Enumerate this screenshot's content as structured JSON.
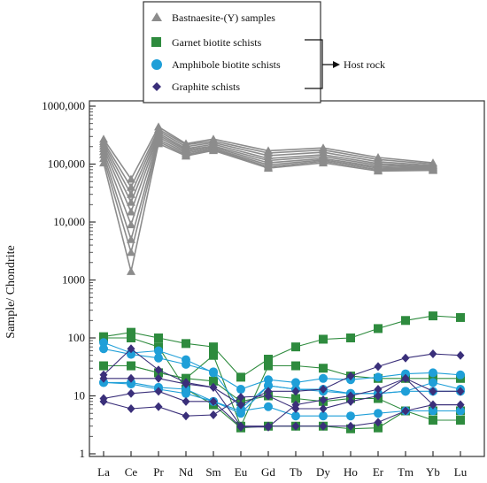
{
  "chart_data": {
    "type": "line",
    "yscale": "log",
    "ylim": [
      1,
      1000000
    ],
    "ylabel": "Sample/ Chondrite",
    "xlabel": "",
    "categories": [
      "La",
      "Ce",
      "Pr",
      "Nd",
      "Sm",
      "Eu",
      "Gd",
      "Tb",
      "Dy",
      "Ho",
      "Er",
      "Tm",
      "Yb",
      "Lu"
    ],
    "y_ticks": [
      1,
      10,
      100,
      1000,
      10000,
      100000,
      1000000
    ],
    "y_tick_labels": [
      "1",
      "10",
      "100",
      "1000",
      "10,000",
      "100,000",
      "1000,000"
    ],
    "legend": {
      "entries": [
        {
          "label": "Bastnaesite-(Y)  samples",
          "marker": "triangle",
          "color": "#8c8c8c"
        },
        {
          "label": "Garnet biotite schists",
          "marker": "square",
          "color": "#2e8b3e"
        },
        {
          "label": "Amphibole biotite schists",
          "marker": "circle",
          "color": "#1f9fd8"
        },
        {
          "label": "Graphite schists",
          "marker": "diamond",
          "color": "#3a2f7a"
        }
      ],
      "bracket_label": "Host rock"
    },
    "series": [
      {
        "group": "bastnaesite",
        "values": [
          270000,
          55000,
          440000,
          225000,
          270000,
          null,
          170000,
          null,
          190000,
          null,
          130000,
          null,
          105000,
          null
        ]
      },
      {
        "group": "bastnaesite",
        "values": [
          245000,
          40000,
          400000,
          215000,
          250000,
          null,
          155000,
          null,
          175000,
          null,
          120000,
          null,
          100000,
          null
        ]
      },
      {
        "group": "bastnaesite",
        "values": [
          225000,
          30000,
          370000,
          200000,
          235000,
          null,
          140000,
          null,
          160000,
          null,
          110000,
          null,
          95000,
          null
        ]
      },
      {
        "group": "bastnaesite",
        "values": [
          205000,
          22000,
          340000,
          185000,
          220000,
          null,
          125000,
          null,
          145000,
          null,
          102000,
          null,
          91000,
          null
        ]
      },
      {
        "group": "bastnaesite",
        "values": [
          185000,
          15000,
          315000,
          175000,
          205000,
          null,
          115000,
          null,
          135000,
          null,
          96000,
          null,
          88000,
          null
        ]
      },
      {
        "group": "bastnaesite",
        "values": [
          165000,
          9000,
          290000,
          165000,
          195000,
          null,
          105000,
          null,
          125000,
          null,
          90000,
          null,
          85000,
          null
        ]
      },
      {
        "group": "bastnaesite",
        "values": [
          145000,
          5000,
          265000,
          155000,
          185000,
          null,
          97000,
          null,
          118000,
          null,
          85000,
          null,
          82000,
          null
        ]
      },
      {
        "group": "bastnaesite",
        "values": [
          125000,
          3000,
          245000,
          145000,
          178000,
          null,
          90000,
          null,
          112000,
          null,
          80000,
          null,
          80000,
          null
        ]
      },
      {
        "group": "bastnaesite",
        "values": [
          105000,
          1400,
          225000,
          138000,
          172000,
          null,
          85000,
          null,
          105000,
          null,
          76000,
          null,
          78000,
          null
        ]
      },
      {
        "group": "garnet",
        "values": [
          105,
          125,
          100,
          80,
          70,
          21,
          43,
          70,
          95,
          100,
          145,
          200,
          240,
          225
        ]
      },
      {
        "group": "garnet",
        "values": [
          33,
          33,
          25,
          20,
          18,
          8,
          10,
          9,
          8,
          9,
          9,
          5.5,
          5.5,
          5.5
        ]
      },
      {
        "group": "garnet",
        "values": [
          33,
          33,
          25,
          20,
          50,
          3,
          33,
          33,
          30,
          22,
          20,
          20,
          20,
          20
        ]
      },
      {
        "group": "garnet",
        "values": [
          100,
          100,
          70,
          13,
          7,
          2.8,
          3,
          3,
          3,
          2.7,
          2.8,
          5.5,
          3.8,
          3.8
        ]
      },
      {
        "group": "amphibole",
        "values": [
          83,
          55,
          60,
          42,
          25,
          13,
          19,
          17,
          20,
          19,
          21,
          24,
          25,
          23
        ]
      },
      {
        "group": "amphibole",
        "values": [
          65,
          52,
          45,
          35,
          26,
          6,
          15,
          13,
          12,
          11,
          11,
          12,
          12,
          12
        ]
      },
      {
        "group": "amphibole",
        "values": [
          17,
          17,
          14,
          13,
          8,
          5,
          15,
          13,
          13,
          11,
          11,
          12,
          17,
          13
        ]
      },
      {
        "group": "amphibole",
        "values": [
          17,
          16,
          13,
          11,
          8,
          5.5,
          6.5,
          4.5,
          4.5,
          4.5,
          5,
          5.5,
          5.5,
          5.5
        ]
      },
      {
        "group": "graphite",
        "values": [
          23,
          65,
          28,
          17,
          14,
          7,
          12,
          12,
          13,
          22,
          32,
          45,
          53,
          50
        ]
      },
      {
        "group": "graphite",
        "values": [
          20,
          20,
          20,
          16,
          14,
          3,
          3,
          3,
          3,
          3,
          3.5,
          5.5,
          7,
          7
        ]
      },
      {
        "group": "graphite",
        "values": [
          9,
          11,
          12,
          8,
          8,
          2.9,
          2.9,
          7,
          8.5,
          10,
          13,
          20,
          12,
          12
        ]
      },
      {
        "group": "graphite",
        "values": [
          8,
          6,
          6.5,
          4.5,
          4.7,
          9.5,
          10,
          6,
          6,
          8,
          10,
          20,
          7,
          7
        ]
      }
    ],
    "colors": {
      "bastnaesite": "#8c8c8c",
      "garnet": "#2e8b3e",
      "amphibole": "#1f9fd8",
      "graphite": "#3a2f7a"
    }
  }
}
